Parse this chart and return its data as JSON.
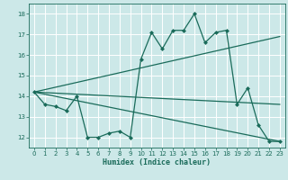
{
  "xlabel": "Humidex (Indice chaleur)",
  "background_color": "#cce8e8",
  "line_color": "#1a6b5a",
  "grid_color": "#ffffff",
  "xlim": [
    -0.5,
    23.5
  ],
  "ylim": [
    11.5,
    18.5
  ],
  "xticks": [
    0,
    1,
    2,
    3,
    4,
    5,
    6,
    7,
    8,
    9,
    10,
    11,
    12,
    13,
    14,
    15,
    16,
    17,
    18,
    19,
    20,
    21,
    22,
    23
  ],
  "yticks": [
    12,
    13,
    14,
    15,
    16,
    17,
    18
  ],
  "main_series": {
    "x": [
      0,
      1,
      2,
      3,
      4,
      5,
      6,
      7,
      8,
      9,
      10,
      11,
      12,
      13,
      14,
      15,
      16,
      17,
      18,
      19,
      20,
      21,
      22,
      23
    ],
    "y": [
      14.2,
      13.6,
      13.5,
      13.3,
      14.0,
      12.0,
      12.0,
      12.2,
      12.3,
      12.0,
      15.8,
      17.1,
      16.3,
      17.2,
      17.2,
      18.0,
      16.6,
      17.1,
      17.2,
      13.6,
      14.4,
      12.6,
      11.8,
      11.8
    ]
  },
  "trend_mean": {
    "x": [
      0,
      23
    ],
    "y": [
      14.2,
      13.6
    ]
  },
  "trend_max": {
    "x": [
      0,
      23
    ],
    "y": [
      14.2,
      16.9
    ]
  },
  "trend_min": {
    "x": [
      0,
      23
    ],
    "y": [
      14.2,
      11.8
    ]
  }
}
